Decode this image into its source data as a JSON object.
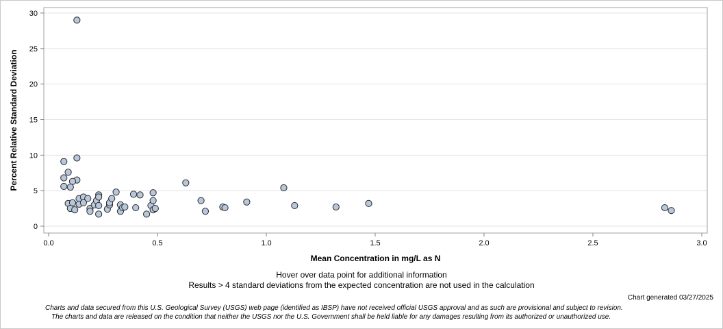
{
  "chart_data": {
    "type": "scatter",
    "xlabel": "Mean Concentration in mg/L as N",
    "ylabel": "Percent Relative Standard Deviation",
    "xlim": [
      0,
      3.0
    ],
    "ylim": [
      0,
      30
    ],
    "xticks": [
      0.0,
      0.5,
      1.0,
      1.5,
      2.0,
      2.5,
      3.0
    ],
    "xtick_labels": [
      "0.0",
      "0.5",
      "1.0",
      "1.5",
      "2.0",
      "2.5",
      "3.0"
    ],
    "yticks": [
      0,
      5,
      10,
      15,
      20,
      25,
      30
    ],
    "ytick_labels": [
      "0",
      "5",
      "10",
      "15",
      "20",
      "25",
      "30"
    ],
    "grid": "horizontal",
    "marker_color": "#b8c8dc",
    "points": [
      {
        "x": 0.13,
        "y": 29.0
      },
      {
        "x": 0.07,
        "y": 9.1
      },
      {
        "x": 0.13,
        "y": 9.6
      },
      {
        "x": 0.09,
        "y": 7.6
      },
      {
        "x": 0.07,
        "y": 6.8
      },
      {
        "x": 0.13,
        "y": 6.5
      },
      {
        "x": 0.11,
        "y": 6.3
      },
      {
        "x": 0.07,
        "y": 5.6
      },
      {
        "x": 0.1,
        "y": 5.5
      },
      {
        "x": 0.09,
        "y": 3.2
      },
      {
        "x": 0.1,
        "y": 2.5
      },
      {
        "x": 0.11,
        "y": 3.3
      },
      {
        "x": 0.12,
        "y": 2.3
      },
      {
        "x": 0.14,
        "y": 3.9
      },
      {
        "x": 0.14,
        "y": 3.1
      },
      {
        "x": 0.16,
        "y": 4.1
      },
      {
        "x": 0.16,
        "y": 3.3
      },
      {
        "x": 0.18,
        "y": 3.9
      },
      {
        "x": 0.19,
        "y": 2.5
      },
      {
        "x": 0.19,
        "y": 2.1
      },
      {
        "x": 0.21,
        "y": 3.0
      },
      {
        "x": 0.22,
        "y": 3.6
      },
      {
        "x": 0.23,
        "y": 4.4
      },
      {
        "x": 0.23,
        "y": 4.1
      },
      {
        "x": 0.23,
        "y": 2.9
      },
      {
        "x": 0.23,
        "y": 1.7
      },
      {
        "x": 0.27,
        "y": 2.4
      },
      {
        "x": 0.28,
        "y": 3.0
      },
      {
        "x": 0.28,
        "y": 3.3
      },
      {
        "x": 0.29,
        "y": 3.9
      },
      {
        "x": 0.31,
        "y": 4.8
      },
      {
        "x": 0.33,
        "y": 3.0
      },
      {
        "x": 0.33,
        "y": 2.1
      },
      {
        "x": 0.34,
        "y": 2.6
      },
      {
        "x": 0.35,
        "y": 2.7
      },
      {
        "x": 0.39,
        "y": 4.5
      },
      {
        "x": 0.4,
        "y": 2.6
      },
      {
        "x": 0.42,
        "y": 4.4
      },
      {
        "x": 0.45,
        "y": 1.7
      },
      {
        "x": 0.47,
        "y": 2.9
      },
      {
        "x": 0.48,
        "y": 4.7
      },
      {
        "x": 0.48,
        "y": 3.6
      },
      {
        "x": 0.48,
        "y": 2.3
      },
      {
        "x": 0.49,
        "y": 2.5
      },
      {
        "x": 0.63,
        "y": 6.1
      },
      {
        "x": 0.7,
        "y": 3.6
      },
      {
        "x": 0.72,
        "y": 2.1
      },
      {
        "x": 0.8,
        "y": 2.7
      },
      {
        "x": 0.81,
        "y": 2.6
      },
      {
        "x": 0.91,
        "y": 3.4
      },
      {
        "x": 1.08,
        "y": 5.4
      },
      {
        "x": 1.13,
        "y": 2.9
      },
      {
        "x": 1.32,
        "y": 2.7
      },
      {
        "x": 1.47,
        "y": 3.2
      },
      {
        "x": 2.83,
        "y": 2.6
      },
      {
        "x": 2.86,
        "y": 2.2
      }
    ]
  },
  "notes": {
    "hover": "Hover over data point for additional information",
    "exclusion": "Results > 4 standard deviations from the expected concentration are not used in the calculation"
  },
  "generated": "Chart generated 03/27/2025",
  "disclaimer": {
    "line1": "Charts and data secured from this U.S. Geological Survey (USGS) web page (identified as IBSP) have not received official USGS approval and as such are provisional and subject to revision.",
    "line2": "The charts and data are released on the condition that neither the USGS nor the U.S. Government shall be held liable for any damages resulting from its authorized or unauthorized use."
  }
}
